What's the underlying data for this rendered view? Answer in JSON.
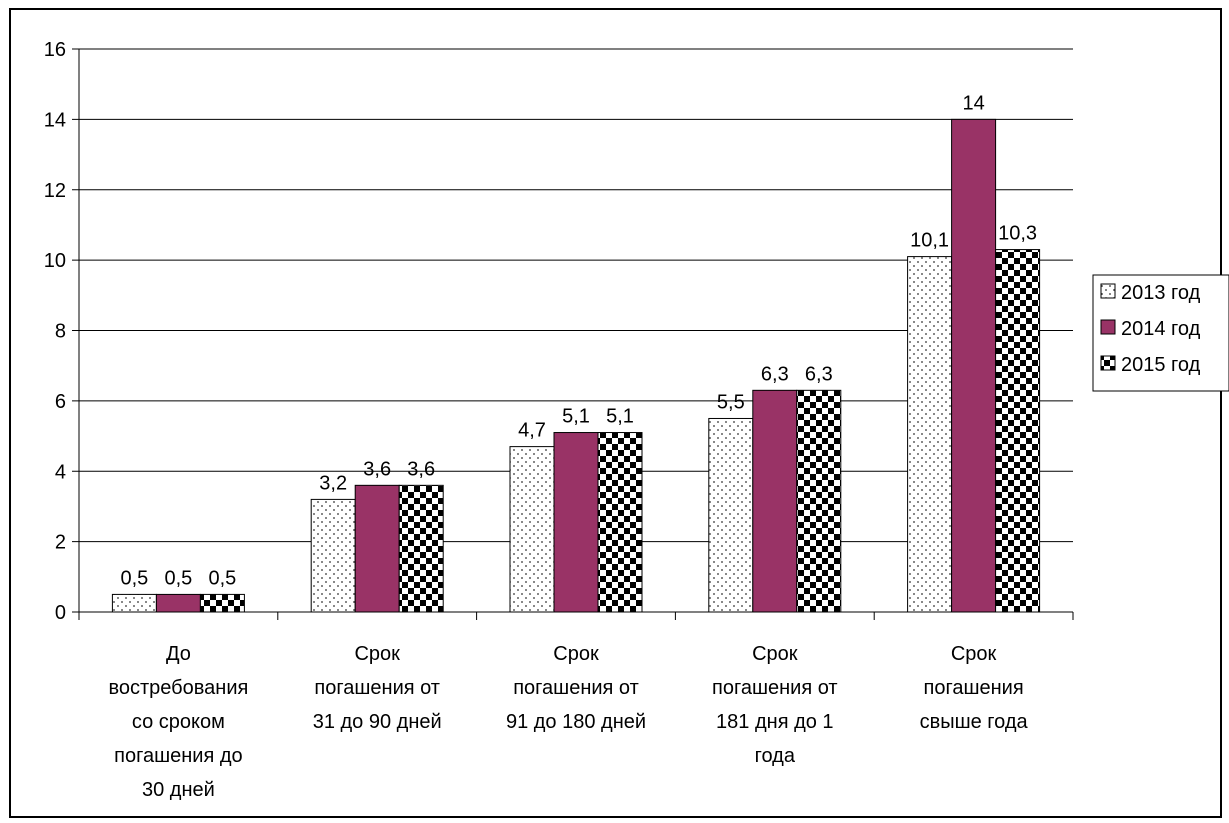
{
  "chart_data": {
    "type": "bar",
    "categories": [
      [
        "До",
        "востребования",
        "со сроком",
        "погашения до",
        "30 дней"
      ],
      [
        "Срок",
        "погашения от",
        "31 до 90 дней"
      ],
      [
        "Срок",
        "погашения от",
        "91 до 180 дней"
      ],
      [
        "Срок",
        "погашения от",
        "181 дня до 1",
        "года"
      ],
      [
        "Срок",
        "погашения",
        "свыше года"
      ]
    ],
    "series": [
      {
        "name": "2013 год",
        "values": [
          0.5,
          3.2,
          4.7,
          5.5,
          10.1
        ],
        "labels": [
          "0,5",
          "3,2",
          "4,7",
          "5,5",
          "10,1"
        ],
        "pattern": "dots"
      },
      {
        "name": "2014 год",
        "values": [
          0.5,
          3.6,
          5.1,
          6.3,
          14
        ],
        "labels": [
          "0,5",
          "3,6",
          "5,1",
          "6,3",
          "14"
        ],
        "pattern": "solid",
        "color": "#993366"
      },
      {
        "name": "2015 год",
        "values": [
          0.5,
          3.6,
          5.1,
          6.3,
          10.3
        ],
        "labels": [
          "0,5",
          "3,6",
          "5,1",
          "6,3",
          "10,3"
        ],
        "pattern": "checker"
      }
    ],
    "yticks": [
      "0",
      "2",
      "4",
      "6",
      "8",
      "10",
      "12",
      "14",
      "16"
    ],
    "ylim": [
      0,
      16
    ],
    "grid": true,
    "legend": "right",
    "title": "",
    "xlabel": "",
    "ylabel": ""
  }
}
